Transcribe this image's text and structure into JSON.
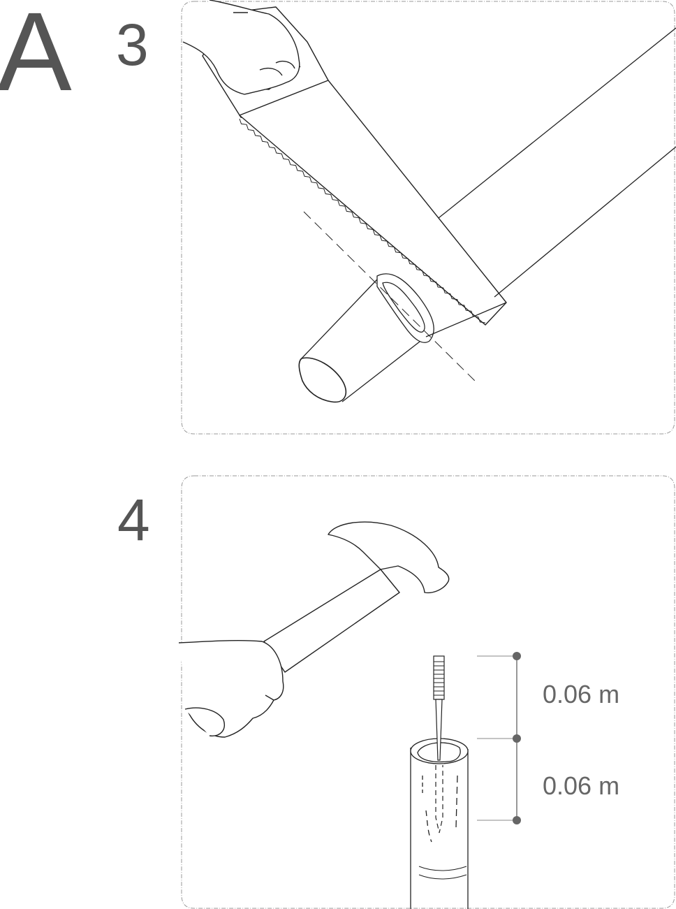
{
  "header": {
    "section_letter": "A"
  },
  "steps": [
    {
      "number": "3",
      "icon": "saw-cutting-pipe-illustration"
    },
    {
      "number": "4",
      "icon": "hammer-nail-into-pipe-illustration"
    }
  ],
  "measurements": {
    "upper": "0.06 m",
    "lower": "0.06 m"
  },
  "colors": {
    "text": "#555555",
    "line": "#222222",
    "frame": "#999999",
    "marker": "#666666"
  }
}
